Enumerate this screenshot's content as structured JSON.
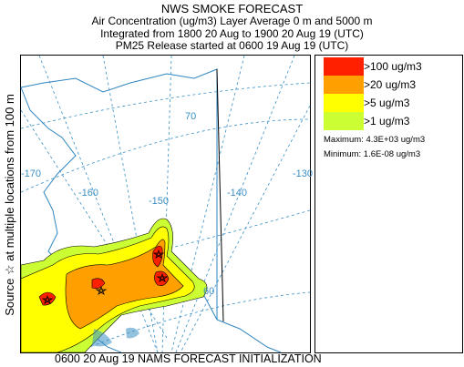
{
  "header": {
    "title": "NWS SMOKE FORECAST",
    "line1": "Air Concentration (ug/m3) Layer Average     0 m and  5000 m",
    "line2": "Integrated from 1800 20 Aug to 1900 20 Aug 19 (UTC)",
    "line3": "PM25 Release started at 0600 19 Aug 19 (UTC)"
  },
  "side_label": "Source ☆  at multiple locations      from   100 m",
  "map": {
    "longitude_labels": [
      "-170",
      "-160",
      "-150",
      "-140",
      "-130"
    ],
    "latitude_labels": [
      "70",
      "60"
    ],
    "graticule_color": "#3a8fc4",
    "coast_color": "#2f86c0"
  },
  "legend": {
    "entries": [
      {
        "label": ">100 ug/m3",
        "color": "#ff2000"
      },
      {
        "label": ">20 ug/m3",
        "color": "#ffa000"
      },
      {
        "label": ">5 ug/m3",
        "color": "#ffff00"
      },
      {
        "label": ">1 ug/m3",
        "color": "#ccff33"
      }
    ],
    "maximum": "Maximum: 4.3E+03 ug/m3",
    "minimum": "Minimum: 1.6E-08 ug/m3"
  },
  "footer": "0600 20 Aug 19 NAMS FORECAST INITIALIZATION"
}
